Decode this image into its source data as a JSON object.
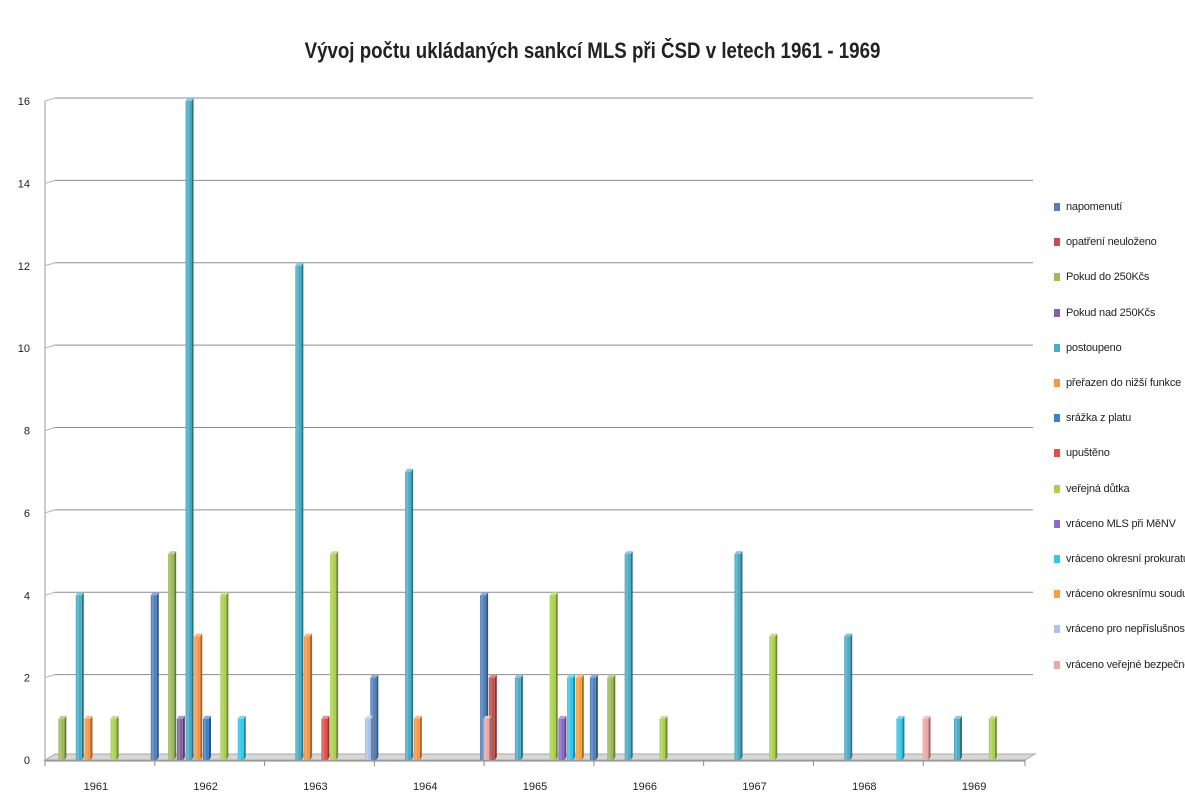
{
  "chart_data": {
    "type": "bar",
    "title": "Vývoj počtu ukládaných sankcí MLS při ČSD v letech 1961 - 1969",
    "xlabel": "",
    "ylabel": "",
    "ylim": [
      0,
      16
    ],
    "y_ticks": [
      "0",
      "2",
      "4",
      "6",
      "8",
      "10",
      "12",
      "14",
      "16"
    ],
    "grid": true,
    "legend_position": "right",
    "categories": [
      "1961",
      "1962",
      "1963",
      "1964",
      "1965",
      "1966",
      "1967",
      "1968",
      "1969"
    ],
    "series": [
      {
        "name": "napomenutí",
        "color": "#4F81BD",
        "values": [
          0,
          4,
          0,
          2,
          4,
          2,
          0,
          0,
          0
        ]
      },
      {
        "name": "opatření neuloženo",
        "color": "#C0504D",
        "values": [
          0,
          0,
          0,
          0,
          2,
          0,
          0,
          0,
          0
        ]
      },
      {
        "name": "Pokud do 250Kčs",
        "color": "#9BBB59",
        "values": [
          1,
          5,
          0,
          0,
          0,
          2,
          0,
          0,
          0
        ]
      },
      {
        "name": "Pokud nad 250Kčs",
        "color": "#8064A2",
        "values": [
          0,
          1,
          0,
          0,
          0,
          0,
          0,
          0,
          0
        ]
      },
      {
        "name": "postoupeno",
        "color": "#4BACC6",
        "values": [
          4,
          16,
          12,
          7,
          2,
          5,
          5,
          3,
          1
        ]
      },
      {
        "name": "přeřazen do nižší funkce",
        "color": "#F79646",
        "values": [
          1,
          3,
          3,
          1,
          0,
          0,
          0,
          0,
          0
        ]
      },
      {
        "name": "srážka z platu",
        "color": "#3F7FC8",
        "values": [
          0,
          1,
          0,
          0,
          0,
          0,
          0,
          0,
          0
        ]
      },
      {
        "name": "upuštěno",
        "color": "#E0504D",
        "values": [
          0,
          0,
          1,
          0,
          0,
          0,
          0,
          0,
          0
        ]
      },
      {
        "name": "veřejná důtka",
        "color": "#A9D14F",
        "values": [
          1,
          4,
          5,
          0,
          4,
          1,
          3,
          0,
          1
        ]
      },
      {
        "name": "vráceno MLS při MěNV",
        "color": "#8B6BC8",
        "values": [
          0,
          0,
          0,
          0,
          1,
          0,
          0,
          0,
          0
        ]
      },
      {
        "name": "vráceno okresní prokuratuře",
        "color": "#35C6E8",
        "values": [
          0,
          1,
          0,
          0,
          2,
          0,
          0,
          1,
          0
        ]
      },
      {
        "name": "vráceno okresnímu soudu",
        "color": "#F7A13B",
        "values": [
          0,
          0,
          0,
          0,
          2,
          0,
          0,
          0,
          0
        ]
      },
      {
        "name": "vráceno pro nepříslušnost",
        "color": "#A9C3EE",
        "values": [
          0,
          0,
          1,
          0,
          0,
          0,
          0,
          0,
          0
        ]
      },
      {
        "name": "vráceno veřejné bezpečnosti",
        "color": "#EBA6A6",
        "values": [
          0,
          0,
          0,
          1,
          0,
          0,
          0,
          1,
          0
        ]
      }
    ]
  }
}
